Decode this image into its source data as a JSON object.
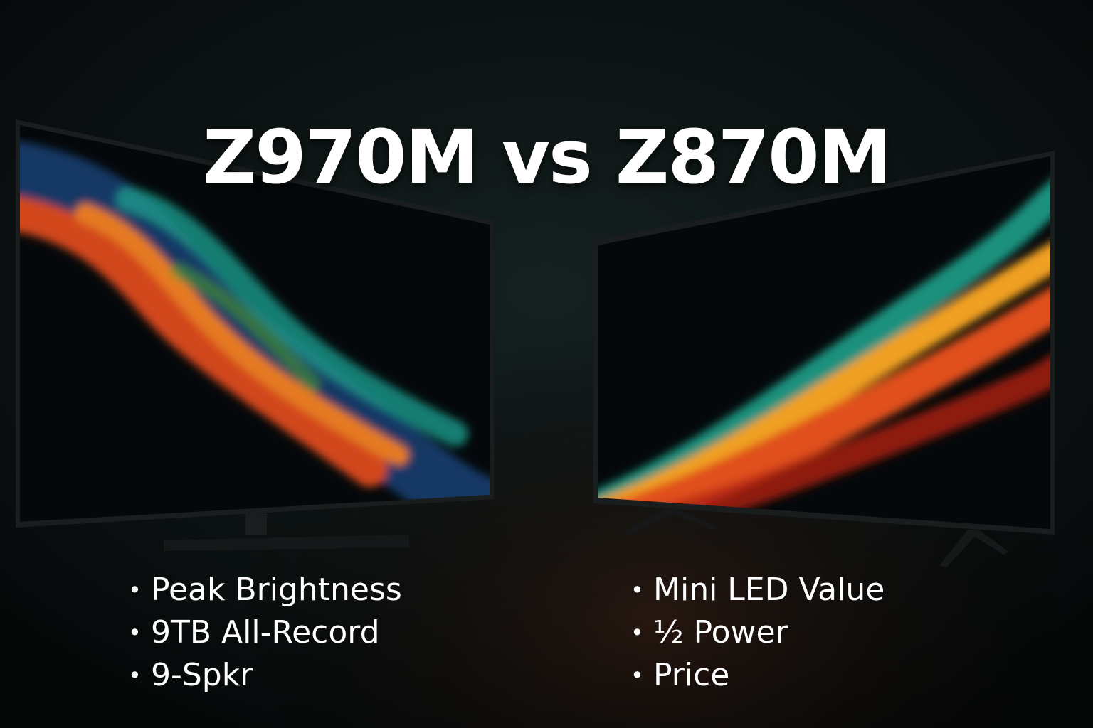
{
  "title": "Z970M vs Z870M",
  "left": {
    "features": [
      "Peak Brightness",
      "9TB All-Record",
      "9-Spkr"
    ]
  },
  "right": {
    "features": [
      "Mini LED Value",
      "½ Power",
      "Price"
    ]
  }
}
